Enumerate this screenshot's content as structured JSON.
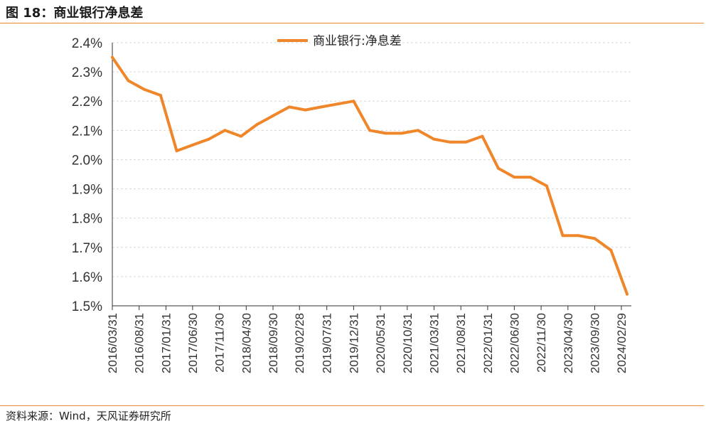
{
  "header": {
    "title": "图 18：商业银行净息差"
  },
  "footer": {
    "source": "资料来源：Wind，天风证券研究所"
  },
  "colors": {
    "series": "#f0862a",
    "rule": "#e98a2e",
    "grid": "#d9d9d9"
  },
  "chart_data": {
    "type": "line",
    "title": "",
    "xlabel": "",
    "ylabel": "",
    "ylim": [
      1.5,
      2.4
    ],
    "yticks": [
      "1.5%",
      "1.6%",
      "1.7%",
      "1.8%",
      "1.9%",
      "2.0%",
      "2.1%",
      "2.2%",
      "2.3%",
      "2.4%"
    ],
    "grid": true,
    "legend": "top-center",
    "x": [
      "2016/03/31",
      "2016/06/30",
      "2016/09/30",
      "2016/12/31",
      "2017/03/31",
      "2017/06/30",
      "2017/09/30",
      "2017/12/31",
      "2018/03/31",
      "2018/06/30",
      "2018/09/30",
      "2018/12/31",
      "2019/03/31",
      "2019/06/30",
      "2019/09/30",
      "2019/12/31",
      "2020/03/31",
      "2020/06/30",
      "2020/09/30",
      "2020/12/31",
      "2021/03/31",
      "2021/06/30",
      "2021/09/30",
      "2021/12/31",
      "2022/03/31",
      "2022/06/30",
      "2022/09/30",
      "2022/12/31",
      "2023/03/31",
      "2023/06/30",
      "2023/09/30",
      "2023/12/31",
      "2024/03/31"
    ],
    "xticks": [
      "2016/03/31",
      "2016/08/31",
      "2017/01/31",
      "2017/06/30",
      "2017/11/30",
      "2018/04/30",
      "2018/09/30",
      "2019/02/28",
      "2019/07/31",
      "2019/12/31",
      "2020/05/31",
      "2020/10/31",
      "2021/03/31",
      "2021/08/31",
      "2022/01/31",
      "2022/06/30",
      "2022/11/30",
      "2023/04/30",
      "2023/09/30",
      "2024/02/29"
    ],
    "series": [
      {
        "name": "商业银行:净息差",
        "values": [
          2.35,
          2.27,
          2.24,
          2.22,
          2.03,
          2.05,
          2.07,
          2.1,
          2.08,
          2.12,
          2.15,
          2.18,
          2.17,
          2.18,
          2.19,
          2.2,
          2.1,
          2.09,
          2.09,
          2.1,
          2.07,
          2.06,
          2.06,
          2.08,
          1.97,
          1.94,
          1.94,
          1.91,
          1.74,
          1.74,
          1.73,
          1.69,
          1.54
        ]
      }
    ]
  }
}
